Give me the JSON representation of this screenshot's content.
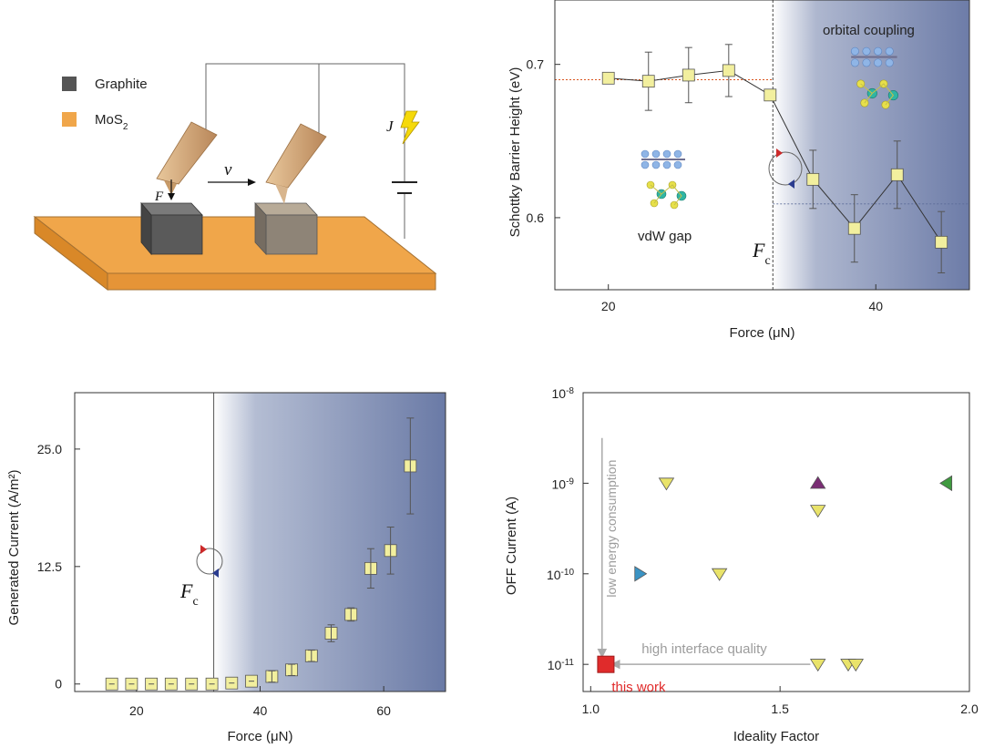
{
  "schematic": {
    "legend_graphite": "Graphite",
    "legend_mos2_base": "MoS",
    "legend_mos2_sub": "2",
    "force_symbol": "F",
    "velocity_symbol": "v",
    "current_symbol": "J",
    "colors": {
      "graphite": "#5a5a5a",
      "mos2": "#f0a64a"
    }
  },
  "chart_data": [
    {
      "type": "line",
      "title": "",
      "xlabel": "Force (μN)",
      "ylabel": "Schottky Barrier Height (eV)",
      "xlim": [
        16,
        47
      ],
      "ylim": [
        0.553,
        0.742
      ],
      "xticks": [
        20,
        40
      ],
      "xtick_labels": [
        "20",
        "40"
      ],
      "yticks": [
        0.6,
        0.7
      ],
      "ytick_labels": [
        "0.6",
        "0.7"
      ],
      "x": [
        20,
        23,
        26,
        29,
        32.1,
        35.3,
        38.4,
        41.6,
        44.9
      ],
      "y": [
        0.691,
        0.689,
        0.693,
        0.696,
        0.68,
        0.625,
        0.593,
        0.628,
        0.584
      ],
      "yerr": [
        0.003,
        0.019,
        0.018,
        0.017,
        0.003,
        0.019,
        0.022,
        0.022,
        0.02
      ],
      "critical_x": 32.3,
      "low_level": 0.69,
      "high_level": 0.609,
      "annotations": {
        "left": "vdW gap",
        "right": "orbital coupling",
        "critical": "F",
        "critical_sub": "c"
      }
    },
    {
      "type": "scatter",
      "title": "",
      "xlabel": "Force (μN)",
      "ylabel": "Generated Current (A/m²)",
      "xlim": [
        10,
        70
      ],
      "ylim": [
        -0.8,
        31
      ],
      "xticks": [
        20,
        40,
        60
      ],
      "xtick_labels": [
        "20",
        "40",
        "60"
      ],
      "yticks": [
        0,
        12.5,
        25
      ],
      "ytick_labels": [
        "0",
        "12.5",
        "25.0"
      ],
      "x": [
        16,
        19.2,
        22.4,
        25.6,
        28.9,
        32.2,
        35.4,
        38.6,
        41.9,
        45.1,
        48.3,
        51.5,
        54.7,
        57.9,
        61.1,
        64.3
      ],
      "y": [
        0,
        0,
        0,
        0,
        0,
        0,
        0.1,
        0.3,
        0.8,
        1.5,
        3.0,
        5.4,
        7.4,
        12.3,
        14.2,
        23.2
      ],
      "yerr": [
        0,
        0,
        0,
        0,
        0,
        0,
        0.1,
        0.15,
        0.6,
        0.6,
        0.6,
        0.9,
        0.7,
        2.1,
        2.5,
        5.1
      ],
      "critical_x": 32.5,
      "annotations": {
        "critical": "F",
        "critical_sub": "c"
      }
    },
    {
      "type": "scatter",
      "title": "",
      "xlabel": "Ideality Factor",
      "ylabel": "OFF Current (A)",
      "xlim": [
        0.98,
        2.0
      ],
      "ylim_log10": [
        -11.3,
        -8
      ],
      "xticks": [
        1.0,
        1.5,
        2.0
      ],
      "xtick_labels": [
        "1.0",
        "1.5",
        "2.0"
      ],
      "yticks_log10": [
        -11,
        -10,
        -9,
        -8
      ],
      "ytick_labels": [
        {
          "base": "10",
          "exp": "-11"
        },
        {
          "base": "10",
          "exp": "-10"
        },
        {
          "base": "10",
          "exp": "-9"
        },
        {
          "base": "10",
          "exp": "-8"
        }
      ],
      "points": [
        {
          "x": 1.2,
          "log10y": -9,
          "shape": "triangle-down",
          "color": "#e9e36a"
        },
        {
          "x": 1.34,
          "log10y": -10,
          "shape": "triangle-down",
          "color": "#e9e36a"
        },
        {
          "x": 1.6,
          "log10y": -9.3,
          "shape": "triangle-down",
          "color": "#e9e36a"
        },
        {
          "x": 1.6,
          "log10y": -11,
          "shape": "triangle-down",
          "color": "#e9e36a"
        },
        {
          "x": 1.68,
          "log10y": -11,
          "shape": "triangle-down",
          "color": "#e9e36a"
        },
        {
          "x": 1.7,
          "log10y": -11,
          "shape": "triangle-down",
          "color": "#e9e36a"
        },
        {
          "x": 1.6,
          "log10y": -9,
          "shape": "triangle-up",
          "color": "#7a2d74"
        },
        {
          "x": 1.94,
          "log10y": -9,
          "shape": "triangle-left",
          "color": "#3f9a3f"
        },
        {
          "x": 1.13,
          "log10y": -10,
          "shape": "triangle-right",
          "color": "#3a93c4"
        },
        {
          "x": 1.04,
          "log10y": -11,
          "shape": "square",
          "color": "#e02b2b"
        }
      ],
      "annotations": {
        "vertical_arrow": "low energy consumption",
        "horizontal_arrow": "high interface quality",
        "this_work": "this work"
      }
    }
  ]
}
